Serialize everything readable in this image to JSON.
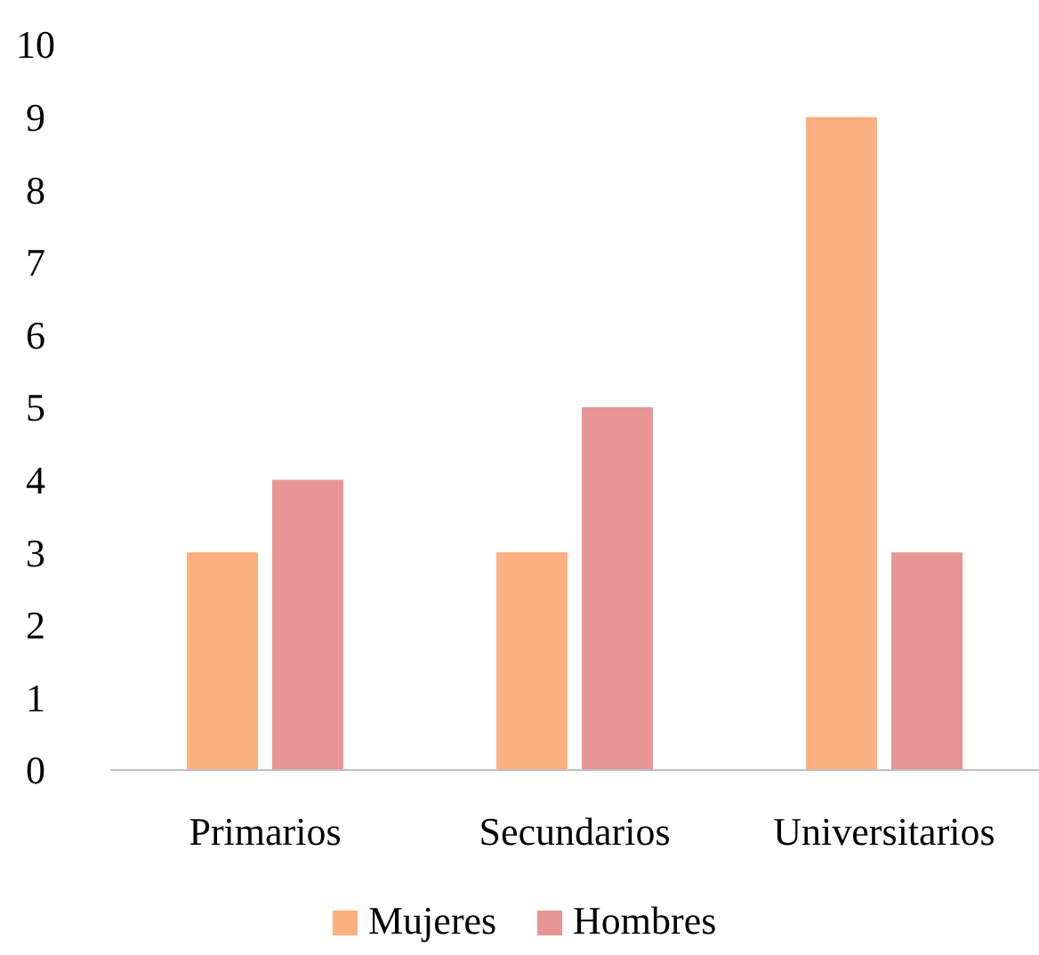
{
  "chart_data": {
    "type": "bar",
    "categories": [
      "Primarios",
      "Secundarios",
      "Universitarios"
    ],
    "series": [
      {
        "name": "Mujeres",
        "color": "#fdb07f",
        "values": [
          3,
          3,
          9
        ]
      },
      {
        "name": "Hombres",
        "color": "#e89595",
        "values": [
          4,
          5,
          3
        ]
      }
    ],
    "ylim": [
      0,
      10
    ],
    "yticks": [
      0,
      1,
      2,
      3,
      4,
      5,
      6,
      7,
      8,
      9,
      10
    ],
    "grid": false,
    "legend": "bottom"
  }
}
